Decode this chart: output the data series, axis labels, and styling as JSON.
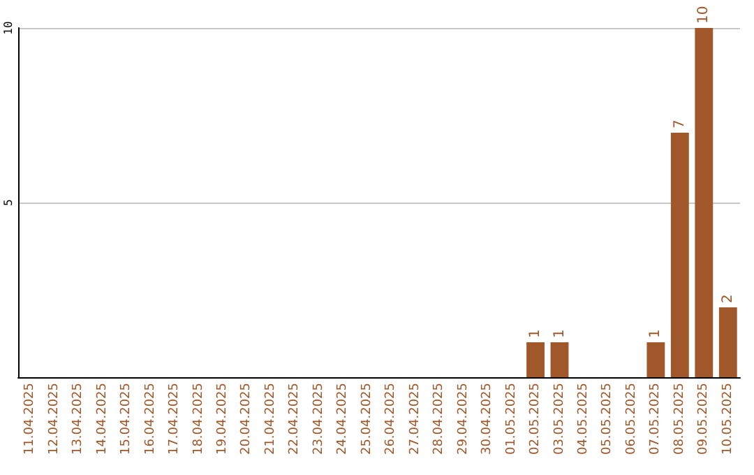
{
  "chart_data": {
    "type": "bar",
    "categories": [
      "11.04.2025",
      "12.04.2025",
      "13.04.2025",
      "14.04.2025",
      "15.04.2025",
      "16.04.2025",
      "17.04.2025",
      "18.04.2025",
      "19.04.2025",
      "20.04.2025",
      "21.04.2025",
      "22.04.2025",
      "23.04.2025",
      "24.04.2025",
      "25.04.2025",
      "26.04.2025",
      "27.04.2025",
      "28.04.2025",
      "29.04.2025",
      "30.04.2025",
      "01.05.2025",
      "02.05.2025",
      "03.05.2025",
      "04.05.2025",
      "05.05.2025",
      "06.05.2025",
      "07.05.2025",
      "08.05.2025",
      "09.05.2025",
      "10.05.2025"
    ],
    "values": [
      0,
      0,
      0,
      0,
      0,
      0,
      0,
      0,
      0,
      0,
      0,
      0,
      0,
      0,
      0,
      0,
      0,
      0,
      0,
      0,
      0,
      1,
      1,
      0,
      0,
      0,
      1,
      7,
      10,
      2
    ],
    "value_labels": [
      null,
      null,
      null,
      null,
      null,
      null,
      null,
      null,
      null,
      null,
      null,
      null,
      null,
      null,
      null,
      null,
      null,
      null,
      null,
      null,
      null,
      "1",
      "1",
      null,
      null,
      null,
      "1",
      "7",
      "10",
      "2"
    ],
    "color": "#a0582a",
    "ylim": [
      0,
      10
    ],
    "yticks": [
      {
        "value": 0,
        "label": null
      },
      5,
      10
    ],
    "grid": "y"
  }
}
